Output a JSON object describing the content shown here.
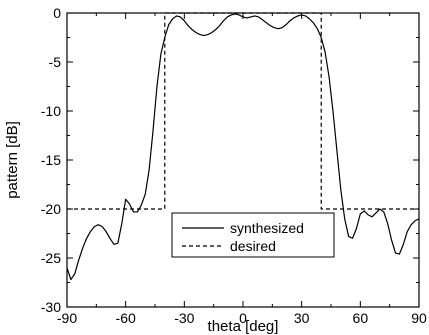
{
  "chart_data": {
    "type": "line",
    "xlabel": "theta [deg]",
    "ylabel": "pattern [dB]",
    "xlim": [
      -90,
      90
    ],
    "ylim": [
      -30,
      0
    ],
    "xticks": [
      -90,
      -60,
      -30,
      0,
      30,
      60,
      90
    ],
    "yticks": [
      0,
      -5,
      -10,
      -15,
      -20,
      -25,
      -30
    ],
    "grid": false,
    "legend_position": "lower-center",
    "series": [
      {
        "name": "synthesized",
        "style": "solid",
        "color": "#000000",
        "x": [
          -90,
          -88,
          -86,
          -84,
          -82,
          -80,
          -78,
          -76,
          -74,
          -72,
          -70,
          -68,
          -66,
          -64,
          -62,
          -60,
          -58,
          -56,
          -54,
          -52,
          -50,
          -48,
          -46,
          -44,
          -42,
          -40,
          -38,
          -36,
          -34,
          -32,
          -30,
          -28,
          -26,
          -24,
          -22,
          -20,
          -18,
          -16,
          -14,
          -12,
          -10,
          -8,
          -6,
          -4,
          -2,
          0,
          2,
          4,
          6,
          8,
          10,
          12,
          14,
          16,
          18,
          20,
          22,
          24,
          26,
          28,
          30,
          32,
          34,
          36,
          38,
          40,
          42,
          44,
          46,
          48,
          50,
          52,
          54,
          56,
          58,
          60,
          62,
          64,
          66,
          68,
          70,
          72,
          74,
          76,
          78,
          80,
          82,
          84,
          86,
          88,
          90
        ],
        "y": [
          -26.0,
          -27.2,
          -26.6,
          -25.2,
          -24.0,
          -23.0,
          -22.3,
          -21.8,
          -21.6,
          -21.8,
          -22.3,
          -23.0,
          -23.6,
          -23.5,
          -21.5,
          -19.0,
          -19.5,
          -20.3,
          -20.3,
          -19.6,
          -18.5,
          -16.0,
          -12.0,
          -7.5,
          -4.2,
          -2.5,
          -1.2,
          -0.6,
          -0.3,
          -0.4,
          -0.8,
          -1.3,
          -1.7,
          -2.0,
          -2.2,
          -2.3,
          -2.2,
          -2.0,
          -1.7,
          -1.3,
          -0.8,
          -0.4,
          -0.2,
          -0.1,
          -0.2,
          -0.4,
          -0.5,
          -0.4,
          -0.3,
          -0.4,
          -0.7,
          -1.0,
          -1.3,
          -1.5,
          -1.6,
          -1.5,
          -1.2,
          -0.8,
          -0.5,
          -0.3,
          -0.2,
          -0.3,
          -0.6,
          -1.0,
          -1.6,
          -2.5,
          -4.0,
          -6.5,
          -10.0,
          -14.0,
          -18.0,
          -21.0,
          -22.8,
          -23.0,
          -22.0,
          -20.5,
          -20.2,
          -20.6,
          -20.8,
          -20.4,
          -20.0,
          -20.3,
          -21.5,
          -23.2,
          -24.5,
          -24.6,
          -23.6,
          -22.3,
          -21.6,
          -21.2,
          -21.0
        ]
      },
      {
        "name": "desired",
        "style": "dashed",
        "color": "#000000",
        "x": [
          -90,
          -40,
          -40,
          40,
          40,
          90
        ],
        "y": [
          -20,
          -20,
          0,
          0,
          -20,
          -20
        ]
      }
    ]
  }
}
